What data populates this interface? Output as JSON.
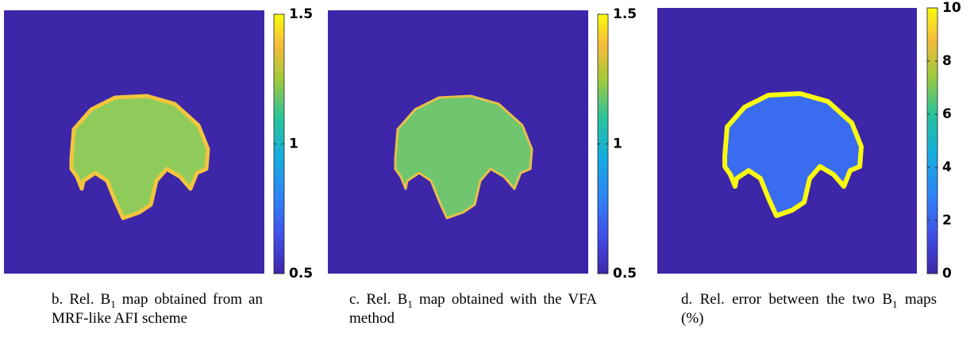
{
  "panels": [
    {
      "colorbar": {
        "lim": [
          0.5,
          1.5
        ],
        "ticks": [
          0.5,
          1,
          1.5
        ]
      },
      "caption": {
        "prefix": "b. Rel. B",
        "subscript": "1",
        "suffix": " map obtained from an MRF-like AFI scheme"
      }
    },
    {
      "colorbar": {
        "lim": [
          0.5,
          1.5
        ],
        "ticks": [
          0.5,
          1,
          1.5
        ]
      },
      "caption": {
        "prefix": "c. Rel. B",
        "subscript": "1",
        "suffix": " map obtained with the VFA method"
      }
    },
    {
      "colorbar": {
        "lim": [
          0,
          10
        ],
        "ticks": [
          0,
          2,
          4,
          6,
          8,
          10
        ]
      },
      "caption": {
        "prefix": "d. Rel. error between the two B",
        "subscript": "1",
        "suffix": " maps (%)"
      }
    }
  ]
}
